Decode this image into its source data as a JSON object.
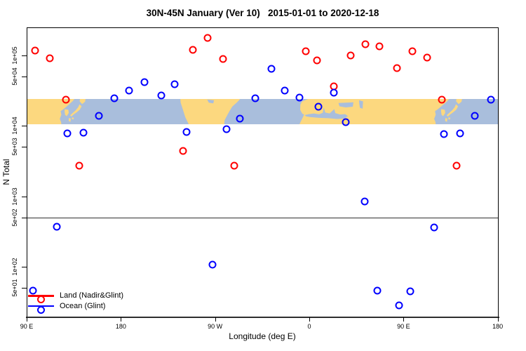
{
  "title": "30N-45N January (Ver 10)   2015-01-01 to 2020-12-18",
  "axes": {
    "x_label": "Longitude (deg E)",
    "y_label": "N Total",
    "x_ticks": [
      {
        "label": "90 E",
        "lon": 90
      },
      {
        "label": "180",
        "lon": 180
      },
      {
        "label": "90 W",
        "lon": 270
      },
      {
        "label": "0",
        "lon": 360
      },
      {
        "label": "90 E",
        "lon": 450
      },
      {
        "label": "180",
        "lon": 540
      }
    ],
    "y_ticks": [
      {
        "label": "1e+05",
        "value": 100000
      },
      {
        "label": "5e+04",
        "value": 50000
      },
      {
        "label": "1e+04",
        "value": 10000
      },
      {
        "label": "5e+03",
        "value": 5000
      },
      {
        "label": "1e+03",
        "value": 1000
      },
      {
        "label": "5e+02",
        "value": 500
      },
      {
        "label": "1e+02",
        "value": 100
      },
      {
        "label": "5e+01",
        "value": 50
      }
    ]
  },
  "legend": [
    {
      "label": "Land (Nadir&Glint)",
      "color": "#ff0000"
    },
    {
      "label": "Ocean (Glint)",
      "color": "#0000ff"
    }
  ],
  "colors": {
    "land_marker": "#ff0000",
    "ocean_marker": "#0000ff",
    "map_land": "#fcd87f",
    "map_ocean": "#a9bedc",
    "reference_line": "#303030"
  },
  "reference_line_value": 500,
  "chart_data": {
    "type": "scatter",
    "note": "x = longitude plotted eastward from 90E; values >180 continue west (270=90W, 360=0, 450=90E, 540=180). y = N Total on log10 scale.",
    "xlim": [
      90,
      540
    ],
    "ylim_log": [
      20,
      250000
    ],
    "grid": false,
    "legend_position": "bottom-left",
    "map_band_lat_range": "30N-45N",
    "series": [
      {
        "name": "Land (Nadir&Glint)",
        "color": "#ff0000",
        "points": [
          [
            98.2,
            117000
          ],
          [
            112.3,
            92000
          ],
          [
            127.5,
            23400
          ],
          [
            140.2,
            2740
          ],
          [
            239.6,
            4410
          ],
          [
            248.8,
            120000
          ],
          [
            262.6,
            177000
          ],
          [
            277.8,
            88500
          ],
          [
            288.3,
            2740
          ],
          [
            356.4,
            114000
          ],
          [
            367.3,
            85100
          ],
          [
            383.2,
            36200
          ],
          [
            399.5,
            100000
          ],
          [
            413.6,
            145000
          ],
          [
            426.8,
            135000
          ],
          [
            443.9,
            66600
          ],
          [
            458.5,
            114000
          ],
          [
            472.6,
            92700
          ],
          [
            486.6,
            23700
          ],
          [
            500.5,
            2720
          ]
        ]
      },
      {
        "name": "Ocean (Glint)",
        "color": "#0000ff",
        "points": [
          [
            95.8,
            46
          ],
          [
            119.0,
            366
          ],
          [
            129.1,
            7820
          ],
          [
            144.3,
            7950
          ],
          [
            159.2,
            13900
          ],
          [
            173.7,
            24600
          ],
          [
            187.8,
            31700
          ],
          [
            202.5,
            41800
          ],
          [
            218.6,
            27000
          ],
          [
            231.3,
            39000
          ],
          [
            242.9,
            8130
          ],
          [
            267.5,
            106
          ],
          [
            280.9,
            8910
          ],
          [
            293.6,
            12600
          ],
          [
            308.1,
            24600
          ],
          [
            323.6,
            64200
          ],
          [
            336.7,
            31500
          ],
          [
            350.8,
            25500
          ],
          [
            368.7,
            18800
          ],
          [
            383.2,
            29400
          ],
          [
            394.8,
            11200
          ],
          [
            412.7,
            837
          ],
          [
            425.0,
            46
          ],
          [
            445.5,
            28
          ],
          [
            456.3,
            45
          ],
          [
            479.0,
            361
          ],
          [
            488.6,
            7690
          ],
          [
            504.2,
            7820
          ],
          [
            518.3,
            13900
          ],
          [
            533.3,
            23700
          ]
        ]
      }
    ]
  }
}
